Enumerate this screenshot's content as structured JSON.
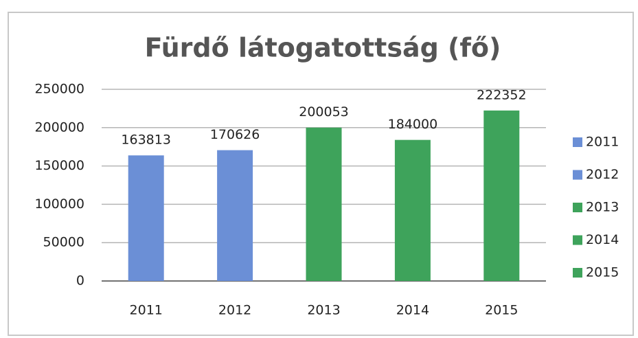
{
  "chart_data": {
    "type": "bar",
    "title": "Fürdő látogatottság (fő)",
    "categories": [
      "2011",
      "2012",
      "2013",
      "2014",
      "2015"
    ],
    "values": [
      163813,
      170626,
      200053,
      184000,
      222352
    ],
    "colors": [
      "#6b8fd6",
      "#6b8fd6",
      "#3ea35b",
      "#3ea35b",
      "#3ea35b"
    ],
    "ylim": [
      0,
      250000
    ],
    "yticks": [
      0,
      50000,
      100000,
      150000,
      200000,
      250000
    ],
    "grid": true,
    "legend": "right"
  }
}
